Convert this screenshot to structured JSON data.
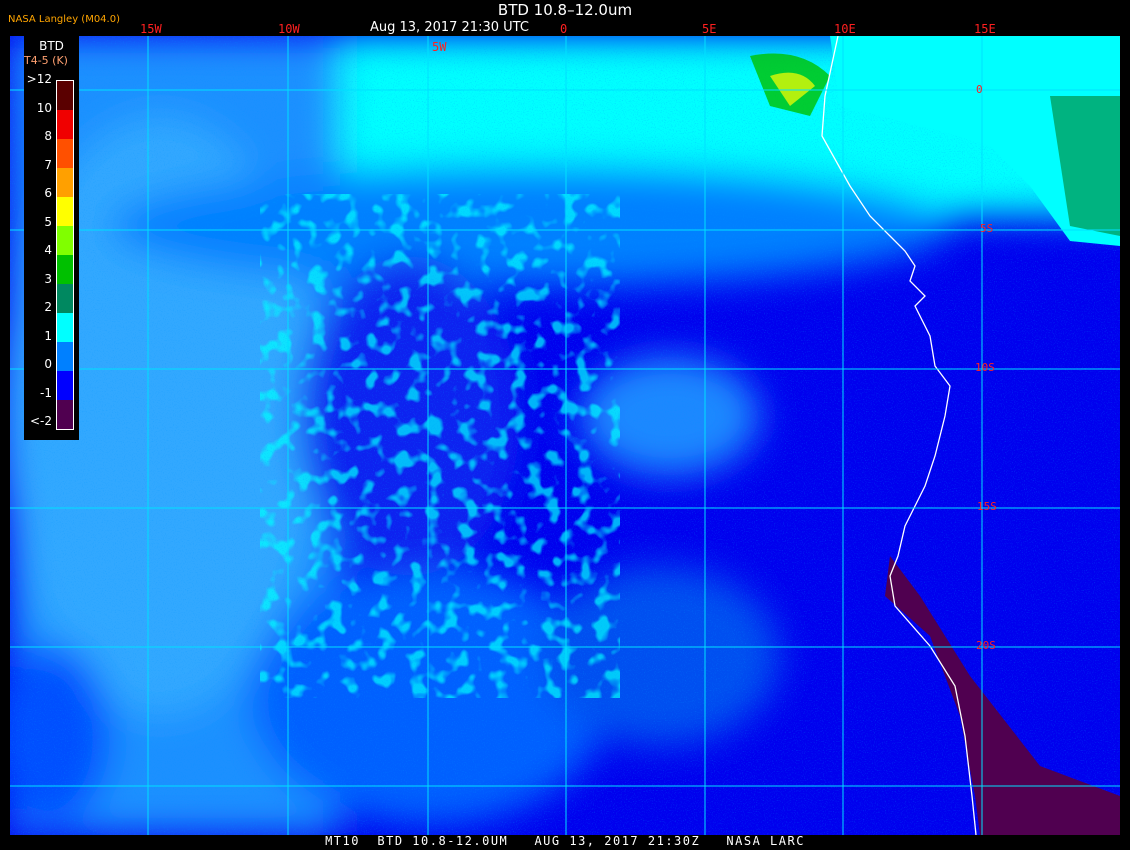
{
  "header": {
    "title": "BTD 10.8–12.0um",
    "datetime": "Aug 13, 2017 21:30 UTC",
    "organization": "NASA Langley (M04.0)"
  },
  "longitude_labels": [
    "15W",
    "10W",
    "5W",
    "0",
    "5E",
    "10E",
    "15E"
  ],
  "latitude_labels": [
    "0",
    "5S",
    "10S",
    "15S",
    "20S"
  ],
  "legend": {
    "title": "BTD",
    "unit": "T4-5 (K)",
    "ticks": [
      ">12",
      "10",
      "8",
      "7",
      "6",
      "5",
      "4",
      "3",
      "2",
      "1",
      "0",
      "-1",
      "<-2"
    ],
    "colors": [
      "#5a0000",
      "#f00000",
      "#ff5000",
      "#ffa000",
      "#ffff00",
      "#80ff00",
      "#00c000",
      "#008860",
      "#00ffff",
      "#0080ff",
      "#0000ff",
      "#500050"
    ]
  },
  "footer": "MT10  BTD 10.8-12.0UM   AUG 13, 2017 21:30Z   NASA LARC"
}
